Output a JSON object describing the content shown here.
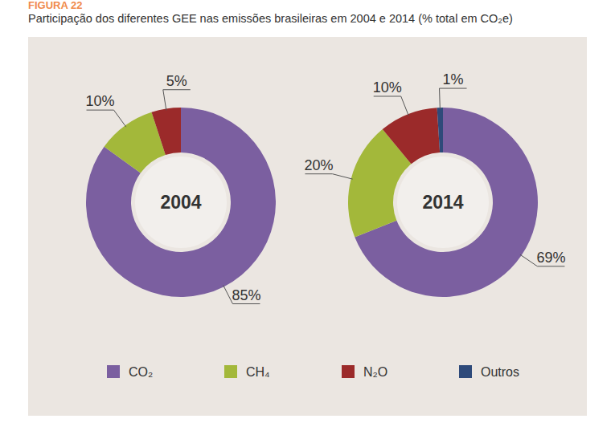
{
  "header": {
    "figure": "FIGURA 22",
    "title": "Participação dos diferentes GEE nas emissões brasileiras em 2004 e 2014 (% total em CO₂e)"
  },
  "chart_data": [
    {
      "type": "pie",
      "title": "2004",
      "categories": [
        "CO₂",
        "CH₄",
        "N₂O"
      ],
      "values": [
        85,
        10,
        5
      ],
      "value_labels": [
        "85%",
        "10%",
        "5%"
      ],
      "colors": [
        "#7b5fa0",
        "#a3b83a",
        "#9b2a2a"
      ],
      "data_labels": true
    },
    {
      "type": "pie",
      "title": "2014",
      "categories": [
        "CO₂",
        "CH₄",
        "N₂O",
        "Outros"
      ],
      "values": [
        69,
        20,
        10,
        1
      ],
      "value_labels": [
        "69%",
        "20%",
        "10%",
        "1%"
      ],
      "colors": [
        "#7b5fa0",
        "#a3b83a",
        "#9b2a2a",
        "#2e4a7a"
      ],
      "data_labels": true,
      "legend": "bottom"
    }
  ]
}
